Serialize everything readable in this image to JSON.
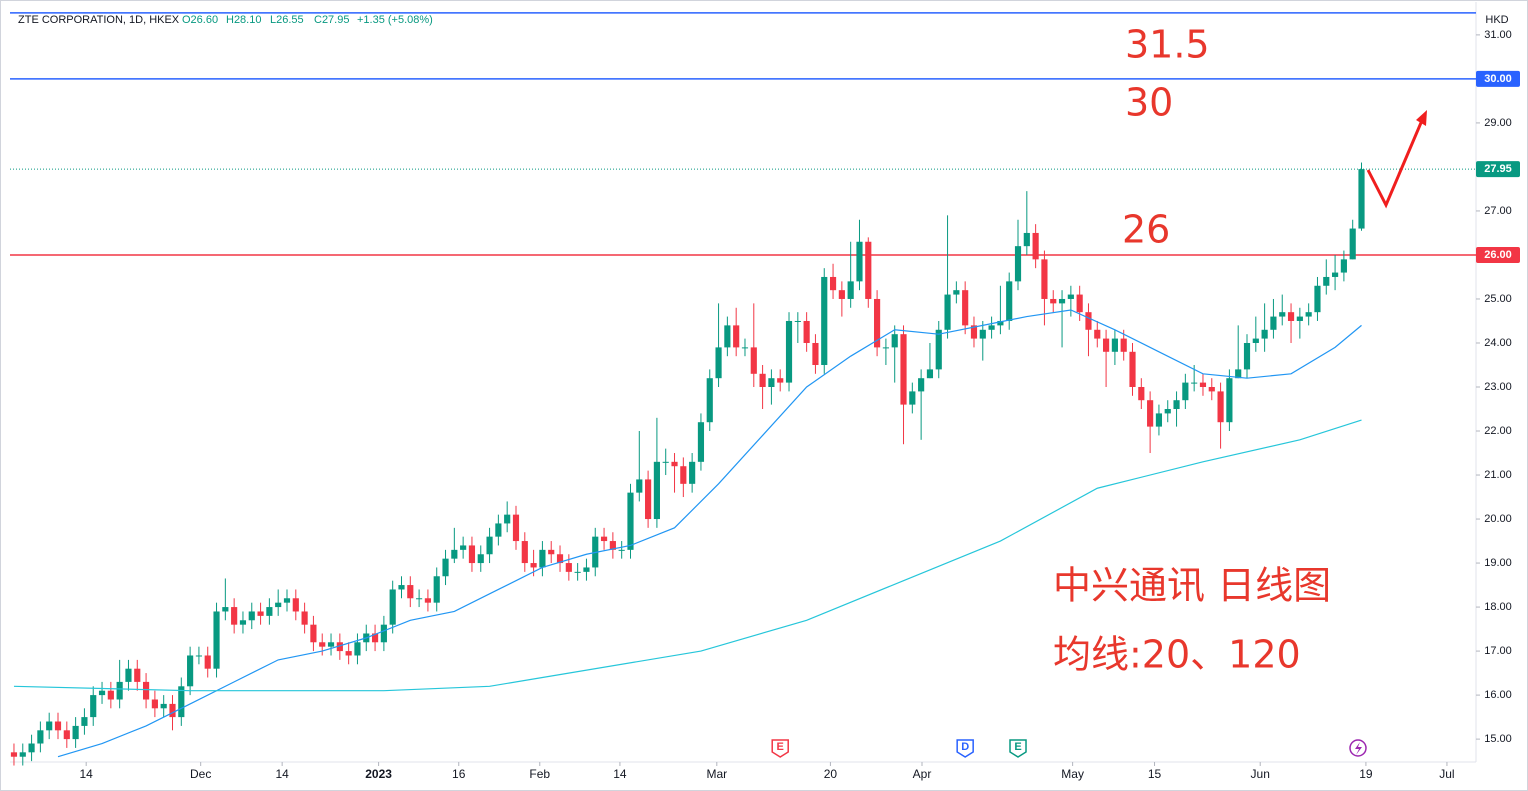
{
  "header": {
    "symbol": "ZTE CORPORATION, 1D, HKEX",
    "o": "O26.60",
    "h": "H28.10",
    "l": "L26.55",
    "c": "C27.95",
    "change": "+1.35 (+5.08%)",
    "currency": "HKD"
  },
  "chart_data": {
    "type": "candlestick",
    "open": [
      14.7,
      14.6,
      14.7,
      14.9,
      15.2,
      15.4,
      15.2,
      15.0,
      15.3,
      15.5,
      16.0,
      16.1,
      15.9,
      16.3,
      16.6,
      16.3,
      15.9,
      15.7,
      15.8,
      15.5,
      16.2,
      16.9,
      16.9,
      16.6,
      17.9,
      18.0,
      17.6,
      17.7,
      17.9,
      17.8,
      18.0,
      18.1,
      18.2,
      17.9,
      17.6,
      17.2,
      17.1,
      17.2,
      17.0,
      16.9,
      17.2,
      17.4,
      17.2,
      17.6,
      18.4,
      18.5,
      18.2,
      18.2,
      18.1,
      18.7,
      19.1,
      19.3,
      19.4,
      19.0,
      19.2,
      19.6,
      19.9,
      20.1,
      19.5,
      19.0,
      18.9,
      19.3,
      19.2,
      19.0,
      18.8,
      18.8,
      18.9,
      19.6,
      19.5,
      19.3,
      19.3,
      20.6,
      20.9,
      20.0,
      21.3,
      21.3,
      21.2,
      20.8,
      21.3,
      22.2,
      23.2,
      23.9,
      24.4,
      23.9,
      23.9,
      23.3,
      23.0,
      23.2,
      23.1,
      24.5,
      24.5,
      24.0,
      23.5,
      25.5,
      25.2,
      25.0,
      25.4,
      26.3,
      25.0,
      23.9,
      23.9,
      24.2,
      22.6,
      22.9,
      23.2,
      23.4,
      24.3,
      25.1,
      25.2,
      24.4,
      24.1,
      24.3,
      24.4,
      24.5,
      25.4,
      26.2,
      26.5,
      25.9,
      25.0,
      24.9,
      25.0,
      25.1,
      24.7,
      24.3,
      24.1,
      23.8,
      24.1,
      23.8,
      23.0,
      22.7,
      22.1,
      22.4,
      22.5,
      22.7,
      23.1,
      23.1,
      23.0,
      22.9,
      22.2,
      23.2,
      23.4,
      24.0,
      24.1,
      24.3,
      24.6,
      24.7,
      24.5,
      24.6,
      24.7,
      25.3,
      25.5,
      25.6,
      25.9,
      26.6
    ],
    "high": [
      14.9,
      14.9,
      15.1,
      15.4,
      15.6,
      15.6,
      15.4,
      15.5,
      15.7,
      16.2,
      16.3,
      16.3,
      16.8,
      16.8,
      16.8,
      16.5,
      16.1,
      16.0,
      16.0,
      16.4,
      17.1,
      17.1,
      17.1,
      18.1,
      18.65,
      18.2,
      17.9,
      18.1,
      18.1,
      18.2,
      18.4,
      18.4,
      18.4,
      18.1,
      17.8,
      17.4,
      17.4,
      17.4,
      17.2,
      17.4,
      17.6,
      17.6,
      17.8,
      18.6,
      18.7,
      18.7,
      18.4,
      18.4,
      18.9,
      19.3,
      19.8,
      19.6,
      19.6,
      19.4,
      19.8,
      20.1,
      20.4,
      20.3,
      19.7,
      19.3,
      19.5,
      19.5,
      19.4,
      19.2,
      19.0,
      19.1,
      19.8,
      19.8,
      19.7,
      19.5,
      20.8,
      22.0,
      21.1,
      22.3,
      21.6,
      21.5,
      21.4,
      21.5,
      22.4,
      23.4,
      24.9,
      24.6,
      24.8,
      24.1,
      24.9,
      23.5,
      23.4,
      23.4,
      24.7,
      24.7,
      24.7,
      24.2,
      25.7,
      25.8,
      25.4,
      26.3,
      26.8,
      26.4,
      25.2,
      24.1,
      24.4,
      24.4,
      23.1,
      23.4,
      24.0,
      24.5,
      26.9,
      25.4,
      25.4,
      24.6,
      24.5,
      24.6,
      25.3,
      25.6,
      26.8,
      27.45,
      26.7,
      26.1,
      25.2,
      25.2,
      25.3,
      25.3,
      24.9,
      24.5,
      24.3,
      24.3,
      24.3,
      24.0,
      23.2,
      22.9,
      22.6,
      22.7,
      22.9,
      23.3,
      23.5,
      23.3,
      23.2,
      23.1,
      23.4,
      24.4,
      24.2,
      24.6,
      24.9,
      25.0,
      25.1,
      24.9,
      24.8,
      24.9,
      25.5,
      25.9,
      26.0,
      26.1,
      26.8,
      28.1
    ],
    "low": [
      14.4,
      14.4,
      14.5,
      14.7,
      15.0,
      15.0,
      14.8,
      14.8,
      15.1,
      15.3,
      15.8,
      15.7,
      15.7,
      16.1,
      16.1,
      15.7,
      15.5,
      15.5,
      15.2,
      15.3,
      16.0,
      16.7,
      16.4,
      16.4,
      17.7,
      17.4,
      17.4,
      17.5,
      17.6,
      17.6,
      17.8,
      17.9,
      17.7,
      17.4,
      17.0,
      16.9,
      16.9,
      16.8,
      16.7,
      16.7,
      17.0,
      17.0,
      17.0,
      17.4,
      18.2,
      18.0,
      18.0,
      17.9,
      17.9,
      18.5,
      19.0,
      19.1,
      18.8,
      18.8,
      19.0,
      19.4,
      19.7,
      19.3,
      18.8,
      18.7,
      18.7,
      19.0,
      18.8,
      18.6,
      18.6,
      18.6,
      18.7,
      19.3,
      19.1,
      19.1,
      19.1,
      20.4,
      19.8,
      19.8,
      21.0,
      20.6,
      20.5,
      20.6,
      21.1,
      22.0,
      23.0,
      23.7,
      23.7,
      23.7,
      23.0,
      22.5,
      22.6,
      22.9,
      22.9,
      24.0,
      23.8,
      23.3,
      23.3,
      25.0,
      24.6,
      24.8,
      25.2,
      24.8,
      23.7,
      23.5,
      23.1,
      21.7,
      22.4,
      21.8,
      23.2,
      23.2,
      24.1,
      24.9,
      24.2,
      23.9,
      23.6,
      24.1,
      24.2,
      24.3,
      25.2,
      26.0,
      25.7,
      24.4,
      24.7,
      23.9,
      24.6,
      24.5,
      23.7,
      23.9,
      23.0,
      23.5,
      23.6,
      22.8,
      22.5,
      21.5,
      21.9,
      22.2,
      22.1,
      22.5,
      22.9,
      22.8,
      22.7,
      21.6,
      22.0,
      23.2,
      23.2,
      23.8,
      23.8,
      24.1,
      24.4,
      24.0,
      24.1,
      24.4,
      24.5,
      25.1,
      25.2,
      25.4,
      25.9,
      26.55
    ],
    "close": [
      14.6,
      14.7,
      14.9,
      15.2,
      15.4,
      15.2,
      15.0,
      15.3,
      15.5,
      16.0,
      16.1,
      15.9,
      16.3,
      16.6,
      16.3,
      15.9,
      15.7,
      15.8,
      15.5,
      16.2,
      16.9,
      16.9,
      16.6,
      17.9,
      18.0,
      17.6,
      17.7,
      17.9,
      17.8,
      18.0,
      18.1,
      18.2,
      17.9,
      17.6,
      17.2,
      17.1,
      17.2,
      17.0,
      16.9,
      17.2,
      17.4,
      17.2,
      17.6,
      18.4,
      18.5,
      18.2,
      18.2,
      18.1,
      18.7,
      19.1,
      19.3,
      19.4,
      19.0,
      19.2,
      19.6,
      19.9,
      20.1,
      19.5,
      19.0,
      18.9,
      19.3,
      19.2,
      19.0,
      18.8,
      18.8,
      18.9,
      19.6,
      19.5,
      19.3,
      19.3,
      20.6,
      20.9,
      20.0,
      21.3,
      21.3,
      21.2,
      20.8,
      21.3,
      22.2,
      23.2,
      23.9,
      24.4,
      23.9,
      23.9,
      23.3,
      23.0,
      23.2,
      23.1,
      24.5,
      24.5,
      24.0,
      23.5,
      25.5,
      25.2,
      25.0,
      25.4,
      26.3,
      25.0,
      23.9,
      23.9,
      24.2,
      22.6,
      22.9,
      23.2,
      23.4,
      24.3,
      25.1,
      25.2,
      24.4,
      24.1,
      24.3,
      24.4,
      24.5,
      25.4,
      26.2,
      26.5,
      25.9,
      25.0,
      24.9,
      25.0,
      25.1,
      24.7,
      24.3,
      24.1,
      23.8,
      24.1,
      23.8,
      23.0,
      22.7,
      22.1,
      22.4,
      22.5,
      22.7,
      23.1,
      23.1,
      23.0,
      22.9,
      22.2,
      23.2,
      23.4,
      24.0,
      24.1,
      24.3,
      24.6,
      24.7,
      24.5,
      24.6,
      24.7,
      25.3,
      25.5,
      25.6,
      25.9,
      26.6,
      27.95
    ],
    "up_color": "#089981",
    "down_color": "#f23645",
    "lines": [
      {
        "color": "#2196f3",
        "x": [
          5,
          10,
          15,
          20,
          25,
          30,
          35,
          40,
          45,
          50,
          55,
          60,
          65,
          70,
          75,
          80,
          85,
          90,
          95,
          100,
          105,
          110,
          115,
          120,
          125,
          130,
          135,
          140,
          145,
          150,
          153
        ],
        "values": [
          14.6,
          14.9,
          15.3,
          15.8,
          16.3,
          16.8,
          17.0,
          17.3,
          17.7,
          17.9,
          18.4,
          18.9,
          19.2,
          19.4,
          19.8,
          20.8,
          21.9,
          23.0,
          23.7,
          24.3,
          24.2,
          24.4,
          24.6,
          24.75,
          24.3,
          23.8,
          23.3,
          23.2,
          23.3,
          23.9,
          24.4
        ]
      },
      {
        "color": "#26c6da",
        "x": [
          0,
          20,
          42,
          54,
          60,
          78,
          90,
          101,
          112,
          123,
          135,
          146,
          153
        ],
        "values": [
          16.2,
          16.1,
          16.1,
          16.2,
          16.4,
          17.0,
          17.7,
          18.6,
          19.5,
          20.7,
          21.3,
          21.8,
          22.25
        ]
      }
    ],
    "hlines": [
      {
        "value": 31.5,
        "color": "#2962ff"
      },
      {
        "value": 30,
        "label": "30.00",
        "color": "#2962ff"
      },
      {
        "value": 27.95,
        "label": "27.95",
        "color": "#089981",
        "dotted": true
      },
      {
        "value": 26,
        "label": "26.00",
        "color": "#f23645"
      }
    ],
    "events": [
      {
        "label": "E",
        "x": 87,
        "color": "#f23645"
      },
      {
        "label": "D",
        "x": 108,
        "color": "#2962ff"
      },
      {
        "label": "E",
        "x": 114,
        "color": "#089981"
      }
    ],
    "ylim": [
      14.48,
      31.52
    ],
    "yticks": [
      {
        "value": 15,
        "label": "15.00"
      },
      {
        "value": 16,
        "label": "16.00"
      },
      {
        "value": 17,
        "label": "17.00"
      },
      {
        "value": 18,
        "label": "18.00"
      },
      {
        "value": 19,
        "label": "19.00"
      },
      {
        "value": 20,
        "label": "20.00"
      },
      {
        "value": 21,
        "label": "21.00"
      },
      {
        "value": 22,
        "label": "22.00"
      },
      {
        "value": 23,
        "label": "23.00"
      },
      {
        "value": 24,
        "label": "24.00"
      },
      {
        "value": 25,
        "label": "25.00"
      },
      {
        "value": 27,
        "label": "27.00"
      },
      {
        "value": 29,
        "label": "29.00"
      },
      {
        "value": 31,
        "label": "31.00"
      }
    ],
    "xlim": [
      -0.45,
      166
    ],
    "xticks": [
      {
        "value": 8.2,
        "label": "14"
      },
      {
        "value": 21.2,
        "label": "Dec"
      },
      {
        "value": 30.45,
        "label": "14"
      },
      {
        "value": 41.4,
        "label": "2023"
      },
      {
        "value": 50.5,
        "label": "16"
      },
      {
        "value": 59.7,
        "label": "Feb"
      },
      {
        "value": 68.8,
        "label": "14"
      },
      {
        "value": 79.8,
        "label": "Mar"
      },
      {
        "value": 92.7,
        "label": "20"
      },
      {
        "value": 103.1,
        "label": "Apr"
      },
      {
        "value": 120.2,
        "label": "May"
      },
      {
        "value": 129.5,
        "label": "15"
      },
      {
        "value": 141.5,
        "label": "Jun"
      },
      {
        "value": 153.5,
        "label": "19"
      },
      {
        "value": 162.7,
        "label": "Jul"
      }
    ],
    "annotations": [
      "31.5",
      "30",
      "26",
      "中兴通讯 日线图",
      "均线:20、120"
    ]
  }
}
